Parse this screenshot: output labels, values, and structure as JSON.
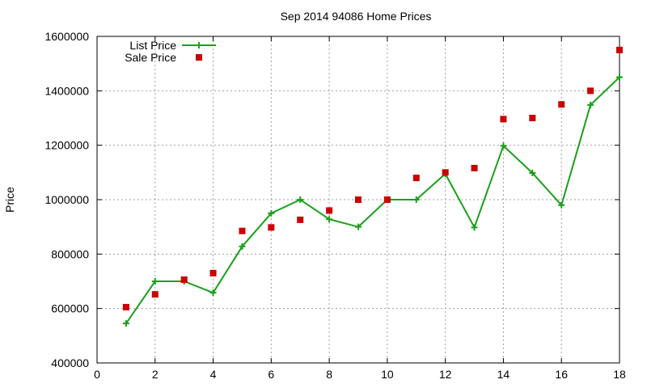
{
  "chart_data": {
    "type": "line",
    "title": "Sep 2014 94086 Home Prices",
    "xlabel": "",
    "ylabel": "Price",
    "xlim": [
      0,
      18
    ],
    "ylim": [
      400000,
      1600000
    ],
    "x_ticks": [
      0,
      2,
      4,
      6,
      8,
      10,
      12,
      14,
      16,
      18
    ],
    "y_ticks": [
      400000,
      600000,
      800000,
      1000000,
      1200000,
      1400000,
      1600000
    ],
    "x_tick_labels": [
      "0",
      "2",
      "4",
      "6",
      "8",
      "10",
      "12",
      "14",
      "16",
      "18"
    ],
    "y_tick_labels": [
      "400000",
      "600000",
      "800000",
      "1000000",
      "1200000",
      "1400000",
      "1600000"
    ],
    "grid": true,
    "legend_position": "top-left",
    "x": [
      1,
      2,
      3,
      4,
      5,
      6,
      7,
      8,
      9,
      10,
      11,
      12,
      13,
      14,
      15,
      16,
      17,
      18
    ],
    "series": [
      {
        "name": "List Price",
        "style": "line-with-plus-markers",
        "color": "#1aa01a",
        "values": [
          545000,
          700000,
          700000,
          658000,
          828000,
          950000,
          1000000,
          928000,
          900000,
          1000000,
          1000000,
          1095000,
          898000,
          1198000,
          1098000,
          980000,
          1348000,
          1450000
        ]
      },
      {
        "name": "Sale Price",
        "style": "square-markers",
        "color": "#cc0000",
        "values": [
          605000,
          652000,
          706000,
          730000,
          885000,
          898000,
          926000,
          960000,
          1000000,
          1000000,
          1080000,
          1100000,
          1116000,
          1296000,
          1300000,
          1350000,
          1400000,
          1550000
        ]
      }
    ]
  }
}
